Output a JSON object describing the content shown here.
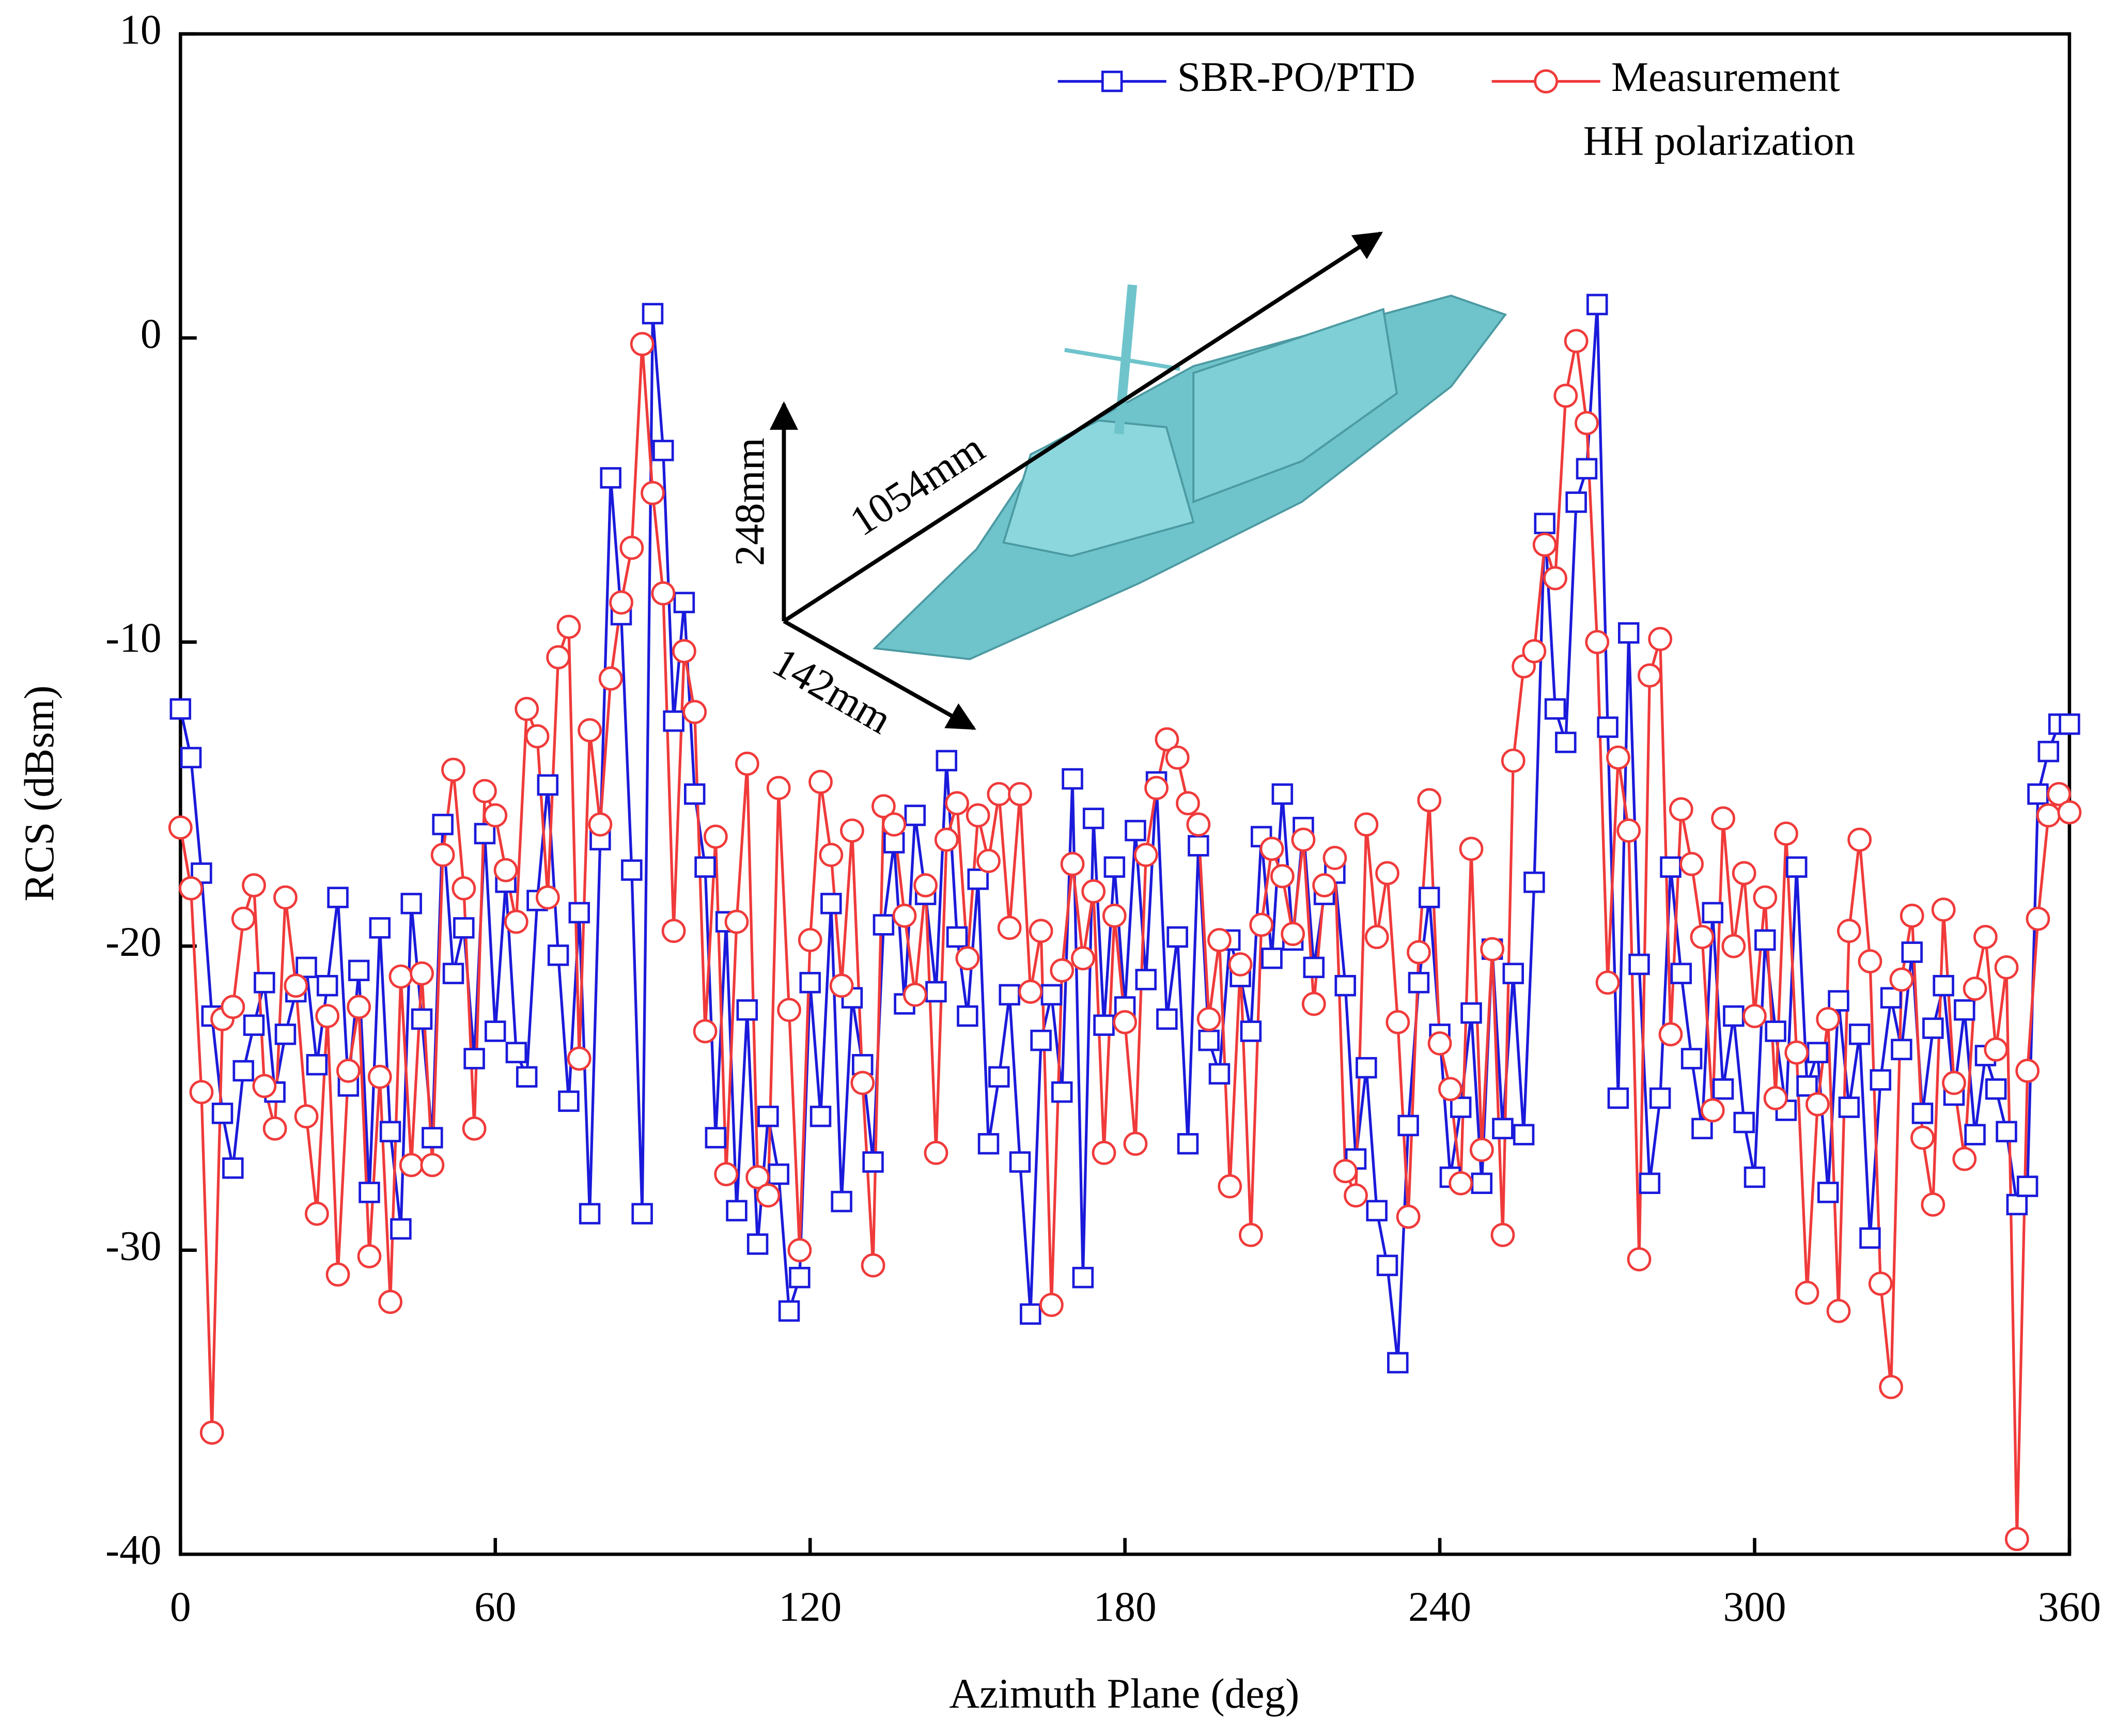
{
  "chart_data": {
    "type": "line",
    "xlabel": "Azimuth Plane (deg)",
    "ylabel": "RCS (dBsm)",
    "annotations": {
      "length": "1054mm",
      "height": "248mm",
      "width": "142mm",
      "polarization": "HH polarization"
    },
    "x": [
      0,
      2,
      4,
      6,
      8,
      10,
      12,
      14,
      16,
      18,
      20,
      22,
      24,
      26,
      28,
      30,
      32,
      34,
      36,
      38,
      40,
      42,
      44,
      46,
      48,
      50,
      52,
      54,
      56,
      58,
      60,
      62,
      64,
      66,
      68,
      70,
      72,
      74,
      76,
      78,
      80,
      82,
      84,
      86,
      88,
      90,
      92,
      94,
      96,
      98,
      100,
      102,
      104,
      106,
      108,
      110,
      112,
      114,
      116,
      118,
      120,
      122,
      124,
      126,
      128,
      130,
      132,
      134,
      136,
      138,
      140,
      142,
      144,
      146,
      148,
      150,
      152,
      154,
      156,
      158,
      160,
      162,
      164,
      166,
      168,
      170,
      172,
      174,
      176,
      178,
      180,
      182,
      184,
      186,
      188,
      190,
      192,
      194,
      196,
      198,
      200,
      202,
      204,
      206,
      208,
      210,
      212,
      214,
      216,
      218,
      220,
      222,
      224,
      226,
      228,
      230,
      232,
      234,
      236,
      238,
      240,
      242,
      244,
      246,
      248,
      250,
      252,
      254,
      256,
      258,
      260,
      262,
      264,
      266,
      268,
      270,
      272,
      274,
      276,
      278,
      280,
      282,
      284,
      286,
      288,
      290,
      292,
      294,
      296,
      298,
      300,
      302,
      304,
      306,
      308,
      310,
      312,
      314,
      316,
      318,
      320,
      322,
      324,
      326,
      328,
      330,
      332,
      334,
      336,
      338,
      340,
      342,
      344,
      346,
      348,
      350,
      352,
      354,
      356,
      358,
      360
    ],
    "series": [
      {
        "name": "SBR-PO/PTD",
        "color": "#1a1adb",
        "marker": "square",
        "values": [
          -12.2,
          -13.8,
          -17.6,
          -22.3,
          -25.5,
          -27.3,
          -24.1,
          -22.6,
          -21.2,
          -24.8,
          -22.9,
          -21.5,
          -20.7,
          -23.9,
          -21.3,
          -18.4,
          -24.6,
          -20.8,
          -28.1,
          -19.4,
          -26.1,
          -29.3,
          -18.6,
          -22.4,
          -26.3,
          -16.0,
          -20.9,
          -19.4,
          -23.7,
          -16.3,
          -22.8,
          -17.9,
          -23.5,
          -24.3,
          -18.5,
          -14.7,
          -20.3,
          -25.1,
          -18.9,
          -28.8,
          -16.5,
          -4.6,
          -9.1,
          -17.5,
          -28.8,
          0.8,
          -3.7,
          -12.6,
          -8.7,
          -15.0,
          -17.4,
          -26.3,
          -19.2,
          -28.7,
          -22.1,
          -29.8,
          -25.6,
          -27.5,
          -32.0,
          -30.9,
          -21.2,
          -25.6,
          -18.6,
          -28.4,
          -21.7,
          -23.9,
          -27.1,
          -19.3,
          -16.6,
          -21.9,
          -15.7,
          -18.3,
          -21.5,
          -13.9,
          -19.7,
          -22.3,
          -17.8,
          -26.5,
          -24.3,
          -21.6,
          -27.1,
          -32.1,
          -23.1,
          -21.6,
          -24.8,
          -14.5,
          -30.9,
          -15.8,
          -22.6,
          -17.4,
          -22.0,
          -16.2,
          -21.1,
          -14.6,
          -22.4,
          -19.7,
          -26.5,
          -16.7,
          -23.1,
          -24.2,
          -19.8,
          -21.0,
          -22.8,
          -16.4,
          -20.4,
          -15.0,
          -19.8,
          -16.1,
          -20.7,
          -18.3,
          -17.6,
          -21.3,
          -27.0,
          -24.0,
          -28.7,
          -30.5,
          -33.7,
          -25.9,
          -21.2,
          -18.4,
          -22.9,
          -27.6,
          -25.3,
          -22.2,
          -27.8,
          -20.1,
          -26.0,
          -20.9,
          -26.2,
          -17.9,
          -6.1,
          -12.2,
          -13.3,
          -5.4,
          -4.3,
          1.1,
          -12.8,
          -25.0,
          -9.7,
          -20.6,
          -27.8,
          -25.0,
          -17.4,
          -20.9,
          -23.7,
          -26.0,
          -18.9,
          -24.7,
          -22.3,
          -25.8,
          -27.6,
          -19.8,
          -22.8,
          -25.4,
          -17.4,
          -24.6,
          -23.5,
          -28.1,
          -21.8,
          -25.3,
          -22.9,
          -29.6,
          -24.4,
          -21.7,
          -23.4,
          -20.2,
          -25.5,
          -22.7,
          -21.3,
          -24.9,
          -22.1,
          -26.2,
          -23.6,
          -24.7,
          -26.1,
          -28.5,
          -27.9,
          -15.0,
          -13.6,
          -12.7,
          -12.7
        ]
      },
      {
        "name": "Measurement",
        "color": "#f03a3a",
        "marker": "circle",
        "values": [
          -16.1,
          -18.1,
          -24.8,
          -36.0,
          -22.4,
          -22.0,
          -19.1,
          -18.0,
          -24.6,
          -26.0,
          -18.4,
          -21.3,
          -25.6,
          -28.8,
          -22.3,
          -30.8,
          -24.1,
          -22.0,
          -30.2,
          -24.3,
          -31.7,
          -21.0,
          -27.2,
          -20.9,
          -27.2,
          -17.0,
          -14.2,
          -18.1,
          -26.0,
          -14.9,
          -15.7,
          -17.5,
          -19.2,
          -12.2,
          -13.1,
          -18.4,
          -10.5,
          -9.5,
          -23.7,
          -12.9,
          -16.0,
          -11.2,
          -8.7,
          -6.9,
          -0.2,
          -5.1,
          -8.4,
          -19.5,
          -10.3,
          -12.3,
          -22.8,
          -16.4,
          -27.5,
          -19.2,
          -14.0,
          -27.6,
          -28.2,
          -14.8,
          -22.1,
          -30.0,
          -19.8,
          -14.6,
          -17.0,
          -21.3,
          -16.2,
          -24.5,
          -30.5,
          -15.4,
          -16.0,
          -19.0,
          -21.6,
          -18.0,
          -26.8,
          -16.5,
          -15.3,
          -20.4,
          -15.7,
          -17.2,
          -15.0,
          -19.4,
          -15.0,
          -21.5,
          -19.5,
          -31.8,
          -20.8,
          -17.3,
          -20.4,
          -18.2,
          -26.8,
          -19.0,
          -22.5,
          -26.5,
          -17.0,
          -14.8,
          -13.2,
          -13.8,
          -15.3,
          -16.0,
          -22.4,
          -19.8,
          -27.9,
          -20.6,
          -29.5,
          -19.3,
          -16.8,
          -17.7,
          -19.6,
          -16.5,
          -21.9,
          -18.0,
          -17.1,
          -27.4,
          -28.2,
          -16.0,
          -19.7,
          -17.6,
          -22.5,
          -28.9,
          -20.2,
          -15.2,
          -23.2,
          -24.7,
          -27.8,
          -16.8,
          -26.7,
          -20.1,
          -29.5,
          -13.9,
          -10.8,
          -10.3,
          -6.8,
          -7.9,
          -1.9,
          -0.1,
          -2.8,
          -10.0,
          -21.2,
          -13.8,
          -16.2,
          -30.3,
          -11.1,
          -9.9,
          -22.9,
          -15.5,
          -17.3,
          -19.7,
          -25.4,
          -15.8,
          -20.0,
          -17.6,
          -22.3,
          -18.4,
          -25.0,
          -16.3,
          -23.5,
          -31.4,
          -25.2,
          -22.4,
          -32.0,
          -19.5,
          -16.5,
          -20.5,
          -31.1,
          -34.5,
          -21.1,
          -19.0,
          -26.3,
          -28.5,
          -18.8,
          -24.5,
          -27.0,
          -21.4,
          -19.7,
          -23.4,
          -20.7,
          -39.5,
          -24.1,
          -19.1,
          -15.7,
          -15.0,
          -15.6
        ]
      }
    ],
    "xlim": [
      0,
      360
    ],
    "xticks": [
      0,
      60,
      120,
      180,
      240,
      300,
      360
    ],
    "ylim": [
      -40,
      10
    ],
    "yticks": [
      -40,
      -30,
      -20,
      -10,
      0,
      10
    ],
    "grid": false,
    "legend": "top-right"
  }
}
